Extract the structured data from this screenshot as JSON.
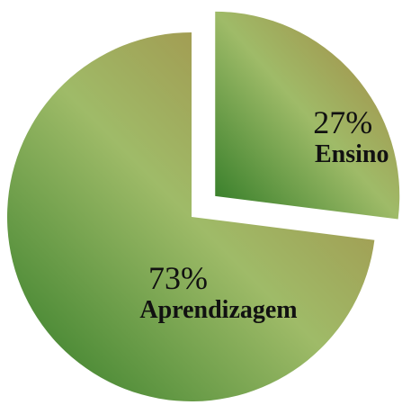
{
  "chart_data": {
    "type": "pie",
    "categories": [
      "Ensino",
      "Aprendizagem"
    ],
    "values": [
      27,
      73
    ],
    "value_labels": [
      "27%",
      "73%"
    ],
    "explode": [
      true,
      false
    ]
  }
}
